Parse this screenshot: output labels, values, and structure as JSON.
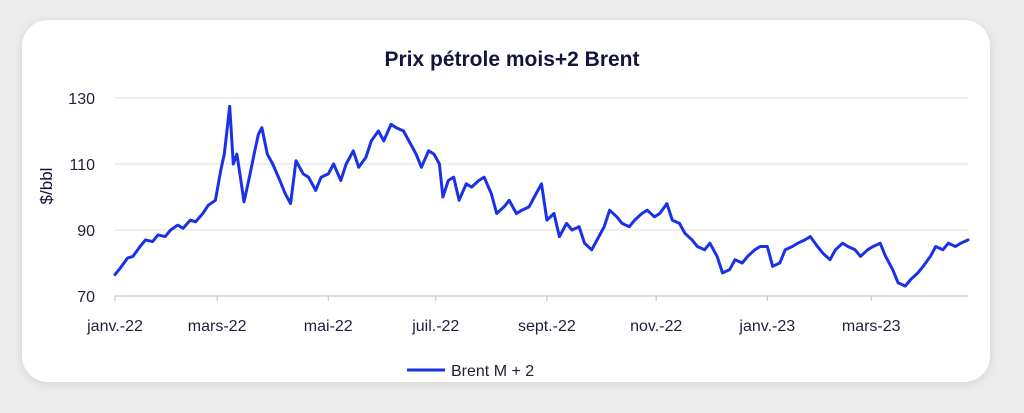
{
  "chart_data": {
    "type": "line",
    "title": "Prix pétrole mois+2 Brent",
    "ylabel": "$/bbl",
    "xlabel": "",
    "ylim": [
      70,
      130
    ],
    "yticks": [
      "130",
      "110",
      "90",
      "70"
    ],
    "ytick_values": [
      130,
      110,
      90,
      70
    ],
    "grid": true,
    "legend_placement": "bottom-center",
    "xlim": [
      "2022-01-03",
      "2023-04-24"
    ],
    "xticks": [
      {
        "date": "2022-01-03",
        "label": "janv.-22"
      },
      {
        "date": "2022-03-01",
        "label": "mars-22"
      },
      {
        "date": "2022-05-02",
        "label": "mai-22"
      },
      {
        "date": "2022-07-01",
        "label": "juil.-22"
      },
      {
        "date": "2022-09-01",
        "label": "sept.-22"
      },
      {
        "date": "2022-11-01",
        "label": "nov.-22"
      },
      {
        "date": "2023-01-02",
        "label": "janv.-23"
      },
      {
        "date": "2023-03-01",
        "label": "mars-23"
      }
    ],
    "series": [
      {
        "name": "Brent M + 2",
        "color": "#1a32e6",
        "points": [
          [
            "2022-01-03",
            76.5
          ],
          [
            "2022-01-06",
            78.5
          ],
          [
            "2022-01-10",
            81.5
          ],
          [
            "2022-01-13",
            82
          ],
          [
            "2022-01-17",
            85
          ],
          [
            "2022-01-20",
            87
          ],
          [
            "2022-01-24",
            86.5
          ],
          [
            "2022-01-27",
            88.5
          ],
          [
            "2022-01-31",
            88
          ],
          [
            "2022-02-03",
            90
          ],
          [
            "2022-02-07",
            91.5
          ],
          [
            "2022-02-10",
            90.5
          ],
          [
            "2022-02-14",
            93
          ],
          [
            "2022-02-17",
            92.5
          ],
          [
            "2022-02-21",
            95
          ],
          [
            "2022-02-24",
            97.5
          ],
          [
            "2022-02-28",
            99
          ],
          [
            "2022-03-03",
            108
          ],
          [
            "2022-03-05",
            113
          ],
          [
            "2022-03-08",
            127.5
          ],
          [
            "2022-03-10",
            110
          ],
          [
            "2022-03-12",
            113
          ],
          [
            "2022-03-14",
            106
          ],
          [
            "2022-03-16",
            98.5
          ],
          [
            "2022-03-19",
            106
          ],
          [
            "2022-03-22",
            114
          ],
          [
            "2022-03-24",
            119
          ],
          [
            "2022-03-26",
            121
          ],
          [
            "2022-03-29",
            113
          ],
          [
            "2022-04-01",
            110
          ],
          [
            "2022-04-05",
            105
          ],
          [
            "2022-04-08",
            101
          ],
          [
            "2022-04-11",
            98
          ],
          [
            "2022-04-14",
            111
          ],
          [
            "2022-04-18",
            107
          ],
          [
            "2022-04-21",
            106
          ],
          [
            "2022-04-25",
            102
          ],
          [
            "2022-04-28",
            106
          ],
          [
            "2022-05-02",
            107
          ],
          [
            "2022-05-05",
            110
          ],
          [
            "2022-05-09",
            105
          ],
          [
            "2022-05-12",
            110
          ],
          [
            "2022-05-16",
            114
          ],
          [
            "2022-05-19",
            109
          ],
          [
            "2022-05-23",
            112
          ],
          [
            "2022-05-26",
            117
          ],
          [
            "2022-05-30",
            120
          ],
          [
            "2022-06-02",
            117
          ],
          [
            "2022-06-06",
            122
          ],
          [
            "2022-06-09",
            121
          ],
          [
            "2022-06-13",
            120
          ],
          [
            "2022-06-16",
            117
          ],
          [
            "2022-06-20",
            113
          ],
          [
            "2022-06-23",
            109
          ],
          [
            "2022-06-27",
            114
          ],
          [
            "2022-06-30",
            113
          ],
          [
            "2022-07-03",
            110
          ],
          [
            "2022-07-05",
            100
          ],
          [
            "2022-07-08",
            105
          ],
          [
            "2022-07-11",
            106
          ],
          [
            "2022-07-14",
            99
          ],
          [
            "2022-07-18",
            104
          ],
          [
            "2022-07-21",
            103
          ],
          [
            "2022-07-25",
            105
          ],
          [
            "2022-07-28",
            106
          ],
          [
            "2022-08-01",
            101
          ],
          [
            "2022-08-04",
            95
          ],
          [
            "2022-08-08",
            97
          ],
          [
            "2022-08-11",
            99
          ],
          [
            "2022-08-15",
            95
          ],
          [
            "2022-08-18",
            96
          ],
          [
            "2022-08-22",
            97
          ],
          [
            "2022-08-25",
            100
          ],
          [
            "2022-08-29",
            104
          ],
          [
            "2022-09-01",
            93
          ],
          [
            "2022-09-05",
            95
          ],
          [
            "2022-09-08",
            88
          ],
          [
            "2022-09-12",
            92
          ],
          [
            "2022-09-15",
            90
          ],
          [
            "2022-09-19",
            91
          ],
          [
            "2022-09-22",
            86
          ],
          [
            "2022-09-26",
            84
          ],
          [
            "2022-09-29",
            87
          ],
          [
            "2022-10-03",
            91
          ],
          [
            "2022-10-06",
            96
          ],
          [
            "2022-10-10",
            94
          ],
          [
            "2022-10-13",
            92
          ],
          [
            "2022-10-17",
            91
          ],
          [
            "2022-10-20",
            93
          ],
          [
            "2022-10-24",
            95
          ],
          [
            "2022-10-27",
            96
          ],
          [
            "2022-10-31",
            94
          ],
          [
            "2022-11-03",
            95
          ],
          [
            "2022-11-07",
            98
          ],
          [
            "2022-11-10",
            93
          ],
          [
            "2022-11-14",
            92
          ],
          [
            "2022-11-17",
            89
          ],
          [
            "2022-11-21",
            87
          ],
          [
            "2022-11-24",
            85
          ],
          [
            "2022-11-28",
            84
          ],
          [
            "2022-12-01",
            86
          ],
          [
            "2022-12-05",
            82
          ],
          [
            "2022-12-08",
            77
          ],
          [
            "2022-12-12",
            78
          ],
          [
            "2022-12-15",
            81
          ],
          [
            "2022-12-19",
            80
          ],
          [
            "2022-12-22",
            82
          ],
          [
            "2022-12-26",
            84
          ],
          [
            "2022-12-29",
            85
          ],
          [
            "2023-01-02",
            85
          ],
          [
            "2023-01-05",
            79
          ],
          [
            "2023-01-09",
            80
          ],
          [
            "2023-01-12",
            84
          ],
          [
            "2023-01-16",
            85
          ],
          [
            "2023-01-19",
            86
          ],
          [
            "2023-01-23",
            87
          ],
          [
            "2023-01-26",
            88
          ],
          [
            "2023-01-30",
            85
          ],
          [
            "2023-02-02",
            83
          ],
          [
            "2023-02-06",
            81
          ],
          [
            "2023-02-09",
            84
          ],
          [
            "2023-02-13",
            86
          ],
          [
            "2023-02-16",
            85
          ],
          [
            "2023-02-20",
            84
          ],
          [
            "2023-02-23",
            82
          ],
          [
            "2023-02-27",
            84
          ],
          [
            "2023-03-02",
            85
          ],
          [
            "2023-03-06",
            86
          ],
          [
            "2023-03-09",
            82
          ],
          [
            "2023-03-13",
            78
          ],
          [
            "2023-03-16",
            74
          ],
          [
            "2023-03-20",
            73
          ],
          [
            "2023-03-23",
            75
          ],
          [
            "2023-03-27",
            77
          ],
          [
            "2023-03-30",
            79
          ],
          [
            "2023-04-03",
            82
          ],
          [
            "2023-04-06",
            85
          ],
          [
            "2023-04-10",
            84
          ],
          [
            "2023-04-13",
            86
          ],
          [
            "2023-04-17",
            85
          ],
          [
            "2023-04-20",
            86
          ],
          [
            "2023-04-24",
            87
          ]
        ]
      }
    ]
  }
}
